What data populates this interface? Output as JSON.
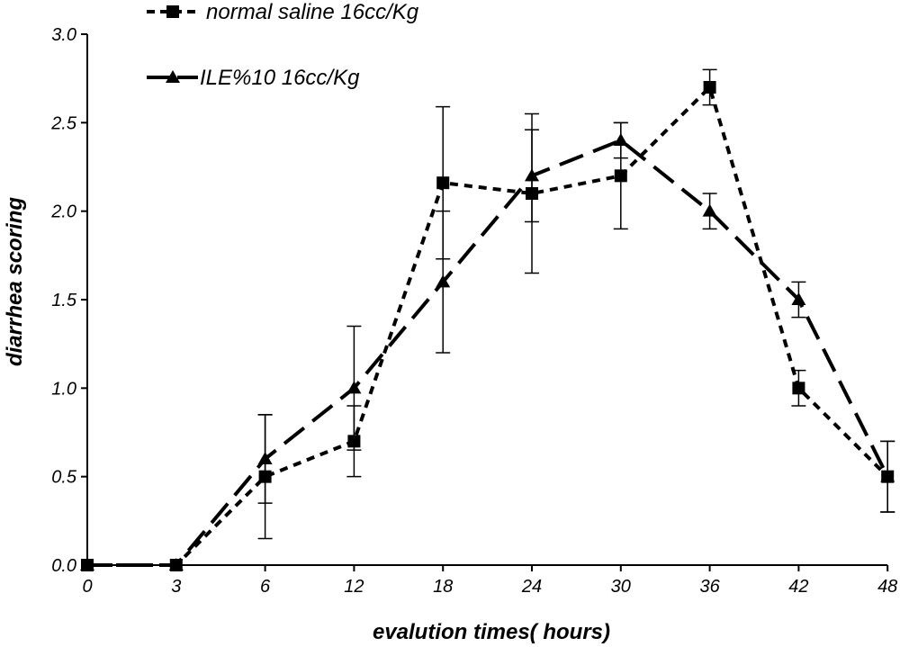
{
  "chart_data": {
    "type": "line",
    "title": "",
    "xlabel": "evalution times( hours)",
    "ylabel": "diarrhea scoring",
    "x": [
      "0",
      "3",
      "6",
      "12",
      "18",
      "24",
      "30",
      "36",
      "42",
      "48"
    ],
    "ylim": [
      0,
      3.0
    ],
    "yticks": [
      "0.0",
      "0.5",
      "1.0",
      "1.5",
      "2.0",
      "2.5",
      "3.0"
    ],
    "grid": false,
    "legend_position": "top-left",
    "series": [
      {
        "name": "normal saline 16cc/Kg",
        "marker": "square",
        "line_style": "short-dash",
        "color": "#000000",
        "values": [
          0,
          0,
          0.5,
          0.7,
          2.16,
          2.1,
          2.2,
          2.7,
          1.0,
          0.5
        ],
        "error": [
          0,
          0,
          0.35,
          0.2,
          0.43,
          0.45,
          0.3,
          0.1,
          0.1,
          0.2
        ]
      },
      {
        "name": "ILE%10  16cc/Kg",
        "marker": "triangle",
        "line_style": "long-dash",
        "color": "#000000",
        "values": [
          0,
          0,
          0.6,
          1.0,
          1.6,
          2.2,
          2.4,
          2.0,
          1.5,
          0.5
        ],
        "error": [
          0,
          0,
          0.25,
          0.35,
          0.4,
          0.26,
          0.1,
          0.1,
          0.1,
          0.2
        ]
      }
    ]
  }
}
